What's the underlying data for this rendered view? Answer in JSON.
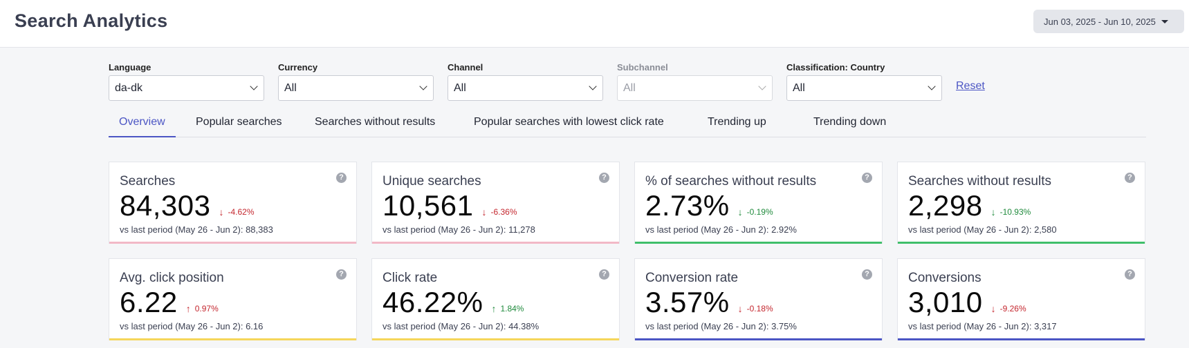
{
  "header": {
    "title": "Search Analytics",
    "date_range": "Jun 03, 2025 - Jun 10, 2025"
  },
  "filters": [
    {
      "label": "Language",
      "value": "da-dk",
      "disabled": false
    },
    {
      "label": "Currency",
      "value": "All",
      "disabled": false
    },
    {
      "label": "Channel",
      "value": "All",
      "disabled": false
    },
    {
      "label": "Subchannel",
      "value": "All",
      "disabled": true
    },
    {
      "label": "Classification: Country",
      "value": "All",
      "disabled": false
    }
  ],
  "reset_label": "Reset",
  "tabs": [
    {
      "label": "Overview",
      "active": true
    },
    {
      "label": "Popular searches",
      "active": false
    },
    {
      "label": "Searches without results",
      "active": false
    },
    {
      "label": "Popular searches with lowest click rate",
      "active": false
    },
    {
      "label": "Trending up",
      "active": false
    },
    {
      "label": "Trending down",
      "active": false
    }
  ],
  "help_glyph": "?",
  "cards": [
    {
      "title": "Searches",
      "value": "84,303",
      "delta": "-4.62%",
      "direction": "down",
      "tone": "red",
      "compare": "vs last period (May 26 - Jun 2): 88,383",
      "accent": "#f2b8c6"
    },
    {
      "title": "Unique searches",
      "value": "10,561",
      "delta": "-6.36%",
      "direction": "down",
      "tone": "red",
      "compare": "vs last period (May 26 - Jun 2): 11,278",
      "accent": "#f2b8c6"
    },
    {
      "title": "% of searches without results",
      "value": "2.73%",
      "delta": "-0.19%",
      "direction": "down",
      "tone": "green",
      "compare": "vs last period (May 26 - Jun 2): 2.92%",
      "accent": "#3fbf6a"
    },
    {
      "title": "Searches without results",
      "value": "2,298",
      "delta": "-10.93%",
      "direction": "down",
      "tone": "green",
      "compare": "vs last period (May 26 - Jun 2): 2,580",
      "accent": "#3fbf6a"
    },
    {
      "title": "Avg. click position",
      "value": "6.22",
      "delta": "0.97%",
      "direction": "up",
      "tone": "red",
      "compare": "vs last period (May 26 - Jun 2): 6.16",
      "accent": "#f5d65a"
    },
    {
      "title": "Click rate",
      "value": "46.22%",
      "delta": "1.84%",
      "direction": "up",
      "tone": "green",
      "compare": "vs last period (May 26 - Jun 2): 44.38%",
      "accent": "#f5d65a"
    },
    {
      "title": "Conversion rate",
      "value": "3.57%",
      "delta": "-0.18%",
      "direction": "down",
      "tone": "red",
      "compare": "vs last period (May 26 - Jun 2): 3.75%",
      "accent": "#4b55c4"
    },
    {
      "title": "Conversions",
      "value": "3,010",
      "delta": "-9.26%",
      "direction": "down",
      "tone": "red",
      "compare": "vs last period (May 26 - Jun 2): 3,317",
      "accent": "#4b55c4"
    }
  ]
}
